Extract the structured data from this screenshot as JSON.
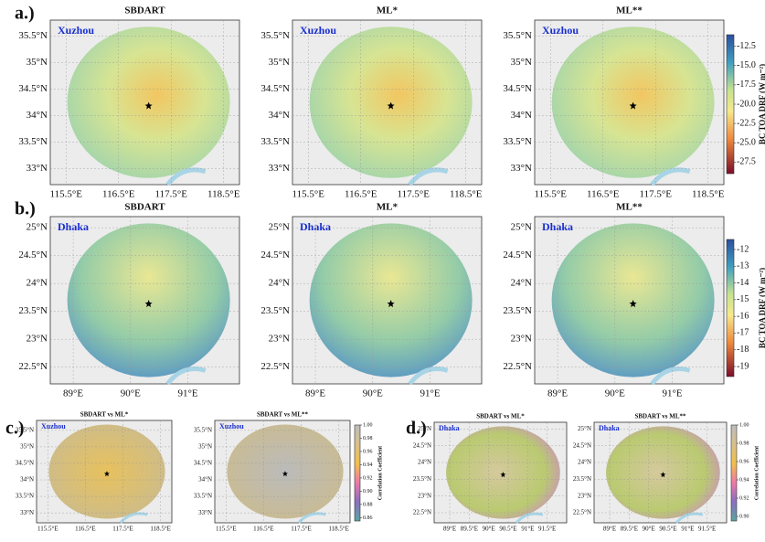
{
  "panel_labels": [
    "a.)",
    "b.)",
    "c.)",
    "d.)"
  ],
  "chart_data": [
    {
      "type": "heatmap",
      "title": "SBDART",
      "location": "Xuzhou",
      "xlim": [
        115.2,
        118.8
      ],
      "ylim": [
        32.7,
        35.8
      ],
      "xticks": [
        {
          "value": 115.5,
          "label": "115.5°E"
        },
        {
          "value": 116.5,
          "label": "116.5°E"
        },
        {
          "value": 117.5,
          "label": "117.5°E"
        },
        {
          "value": 118.5,
          "label": "118.5°E"
        }
      ],
      "yticks": [
        {
          "value": 33,
          "label": "33°N"
        },
        {
          "value": 33.5,
          "label": "33.5°N"
        },
        {
          "value": 34,
          "label": "34°N"
        },
        {
          "value": 34.5,
          "label": "34.5°N"
        },
        {
          "value": 35,
          "label": "35°N"
        },
        {
          "value": 35.5,
          "label": "35.5°N"
        }
      ],
      "grid": true
    },
    {
      "type": "heatmap",
      "title": "ML*",
      "location": "Xuzhou",
      "xlim": [
        115.2,
        118.8
      ],
      "ylim": [
        32.7,
        35.8
      ],
      "xticks": [
        {
          "value": 115.5,
          "label": "115.5°E"
        },
        {
          "value": 116.5,
          "label": "116.5°E"
        },
        {
          "value": 117.5,
          "label": "117.5°E"
        },
        {
          "value": 118.5,
          "label": "118.5°E"
        }
      ],
      "yticks": [
        {
          "value": 33,
          "label": "33°N"
        },
        {
          "value": 33.5,
          "label": "33.5°N"
        },
        {
          "value": 34,
          "label": "34°N"
        },
        {
          "value": 34.5,
          "label": "34.5°N"
        },
        {
          "value": 35,
          "label": "35°N"
        },
        {
          "value": 35.5,
          "label": "35.5°N"
        }
      ],
      "grid": true
    },
    {
      "type": "heatmap",
      "title": "ML**",
      "location": "Xuzhou",
      "xlim": [
        115.2,
        118.8
      ],
      "ylim": [
        32.7,
        35.8
      ],
      "xticks": [
        {
          "value": 115.5,
          "label": "115.5°E"
        },
        {
          "value": 116.5,
          "label": "116.5°E"
        },
        {
          "value": 117.5,
          "label": "117.5°E"
        },
        {
          "value": 118.5,
          "label": "118.5°E"
        }
      ],
      "yticks": [
        {
          "value": 33,
          "label": "33°N"
        },
        {
          "value": 33.5,
          "label": "33.5°N"
        },
        {
          "value": 34,
          "label": "34°N"
        },
        {
          "value": 34.5,
          "label": "34.5°N"
        },
        {
          "value": 35,
          "label": "35°N"
        },
        {
          "value": 35.5,
          "label": "35.5°N"
        }
      ],
      "grid": true
    },
    {
      "type": "heatmap",
      "title": "SBDART",
      "location": "Dhaka",
      "xlim": [
        88.6,
        91.9
      ],
      "ylim": [
        22.2,
        25.2
      ],
      "xticks": [
        {
          "value": 89,
          "label": "89°E"
        },
        {
          "value": 90,
          "label": "90°E"
        },
        {
          "value": 91,
          "label": "91°E"
        }
      ],
      "yticks": [
        {
          "value": 22.5,
          "label": "22.5°N"
        },
        {
          "value": 23,
          "label": "23°N"
        },
        {
          "value": 23.5,
          "label": "23.5°N"
        },
        {
          "value": 24,
          "label": "24°N"
        },
        {
          "value": 24.5,
          "label": "24.5°N"
        },
        {
          "value": 25,
          "label": "25°N"
        }
      ],
      "grid": true
    },
    {
      "type": "heatmap",
      "title": "ML*",
      "location": "Dhaka",
      "xlim": [
        88.6,
        91.9
      ],
      "ylim": [
        22.2,
        25.2
      ],
      "xticks": [
        {
          "value": 89,
          "label": "89°E"
        },
        {
          "value": 90,
          "label": "90°E"
        },
        {
          "value": 91,
          "label": "91°E"
        }
      ],
      "yticks": [
        {
          "value": 22.5,
          "label": "22.5°N"
        },
        {
          "value": 23,
          "label": "23°N"
        },
        {
          "value": 23.5,
          "label": "23.5°N"
        },
        {
          "value": 24,
          "label": "24°N"
        },
        {
          "value": 24.5,
          "label": "24.5°N"
        },
        {
          "value": 25,
          "label": "25°N"
        }
      ],
      "grid": true
    },
    {
      "type": "heatmap",
      "title": "ML**",
      "location": "Dhaka",
      "xlim": [
        88.6,
        91.9
      ],
      "ylim": [
        22.2,
        25.2
      ],
      "xticks": [
        {
          "value": 89,
          "label": "89°E"
        },
        {
          "value": 90,
          "label": "90°E"
        },
        {
          "value": 91,
          "label": "91°E"
        }
      ],
      "yticks": [
        {
          "value": 22.5,
          "label": "22.5°N"
        },
        {
          "value": 23,
          "label": "23°N"
        },
        {
          "value": 23.5,
          "label": "23.5°N"
        },
        {
          "value": 24,
          "label": "24°N"
        },
        {
          "value": 24.5,
          "label": "24.5°N"
        },
        {
          "value": 25,
          "label": "25°N"
        }
      ],
      "grid": true
    },
    {
      "type": "heatmap",
      "title": "SBDART vs ML*",
      "location": "Xuzhou",
      "xlim": [
        115.2,
        118.8
      ],
      "ylim": [
        32.7,
        35.8
      ],
      "xticks": [
        {
          "value": 115.5,
          "label": "115.5°E"
        },
        {
          "value": 116.5,
          "label": "116.5°E"
        },
        {
          "value": 117.5,
          "label": "117.5°E"
        },
        {
          "value": 118.5,
          "label": "118.5°E"
        }
      ],
      "yticks": [
        {
          "value": 33,
          "label": "33°N"
        },
        {
          "value": 33.5,
          "label": "33.5°N"
        },
        {
          "value": 34,
          "label": "34°N"
        },
        {
          "value": 34.5,
          "label": "34.5°N"
        },
        {
          "value": 35,
          "label": "35°N"
        },
        {
          "value": 35.5,
          "label": "35.5°N"
        }
      ],
      "grid": true
    },
    {
      "type": "heatmap",
      "title": "SBDART vs ML**",
      "location": "Xuzhou",
      "xlim": [
        115.2,
        118.8
      ],
      "ylim": [
        32.7,
        35.8
      ],
      "xticks": [
        {
          "value": 115.5,
          "label": "115.5°E"
        },
        {
          "value": 116.5,
          "label": "116.5°E"
        },
        {
          "value": 117.5,
          "label": "117.5°E"
        },
        {
          "value": 118.5,
          "label": "118.5°E"
        }
      ],
      "yticks": [
        {
          "value": 33,
          "label": "33°N"
        },
        {
          "value": 33.5,
          "label": "33.5°N"
        },
        {
          "value": 34,
          "label": "34°N"
        },
        {
          "value": 34.5,
          "label": "34.5°N"
        },
        {
          "value": 35,
          "label": "35°N"
        },
        {
          "value": 35.5,
          "label": "35.5°N"
        }
      ],
      "grid": true
    },
    {
      "type": "heatmap",
      "title": "SBDART vs ML*",
      "location": "Dhaka",
      "xlim": [
        88.6,
        92.0
      ],
      "ylim": [
        22.2,
        25.2
      ],
      "xticks": [
        {
          "value": 89,
          "label": "89°E"
        },
        {
          "value": 89.5,
          "label": "89.5°E"
        },
        {
          "value": 90,
          "label": "90°E"
        },
        {
          "value": 90.5,
          "label": "90.5°E"
        },
        {
          "value": 91,
          "label": "91°E"
        },
        {
          "value": 91.5,
          "label": "91.5°E"
        }
      ],
      "yticks": [
        {
          "value": 22.5,
          "label": "22.5°N"
        },
        {
          "value": 23,
          "label": "23°N"
        },
        {
          "value": 23.5,
          "label": "23.5°N"
        },
        {
          "value": 24,
          "label": "24°N"
        },
        {
          "value": 24.5,
          "label": "24.5°N"
        },
        {
          "value": 25,
          "label": "25°N"
        }
      ],
      "grid": true
    },
    {
      "type": "heatmap",
      "title": "SBDART vs ML**",
      "location": "Dhaka",
      "xlim": [
        88.6,
        92.0
      ],
      "ylim": [
        22.2,
        25.2
      ],
      "xticks": [
        {
          "value": 89,
          "label": "89°E"
        },
        {
          "value": 89.5,
          "label": "89.5°E"
        },
        {
          "value": 90,
          "label": "90°E"
        },
        {
          "value": 90.5,
          "label": "90.5°E"
        },
        {
          "value": 91,
          "label": "91°E"
        },
        {
          "value": 91.5,
          "label": "91.5°E"
        }
      ],
      "yticks": [
        {
          "value": 22.5,
          "label": "22.5°N"
        },
        {
          "value": 23,
          "label": "23°N"
        },
        {
          "value": 23.5,
          "label": "23.5°N"
        },
        {
          "value": 24,
          "label": "24°N"
        },
        {
          "value": 24.5,
          "label": "24.5°N"
        },
        {
          "value": 25,
          "label": "25°N"
        }
      ],
      "grid": true
    },
    {
      "type": "colorbar",
      "label": "BC TOA DRF (W m⁻²)",
      "ylim": [
        -29,
        -11
      ],
      "yticks": [
        -12.5,
        {
          "value": -15,
          "label": "-15.0"
        },
        -17.5,
        {
          "value": -20,
          "label": "-20.0"
        },
        -22.5,
        {
          "value": -25,
          "label": "-25.0"
        },
        -27.5
      ]
    },
    {
      "type": "colorbar",
      "label": "BC TOA DRF (W m⁻²)",
      "ylim": [
        -19.6,
        -11.4
      ],
      "yticks": [
        -12,
        -13,
        -14,
        -15,
        -16,
        -17,
        -18,
        -19
      ]
    },
    {
      "type": "colorbar",
      "label": "Correlation Coefficient",
      "ylim": [
        0.855,
        1.0
      ],
      "yticks": [
        {
          "value": 1,
          "label": "1.00"
        },
        0.98,
        0.96,
        0.94,
        0.92,
        {
          "value": 0.9,
          "label": "0.90"
        },
        0.88,
        0.86
      ]
    },
    {
      "type": "colorbar",
      "label": "Correlation Coefficient",
      "ylim": [
        0.895,
        1.0
      ],
      "yticks": [
        {
          "value": 1,
          "label": "1.00"
        },
        0.98,
        0.96,
        0.94,
        0.92,
        {
          "value": 0.9,
          "label": "0.90"
        }
      ]
    }
  ]
}
